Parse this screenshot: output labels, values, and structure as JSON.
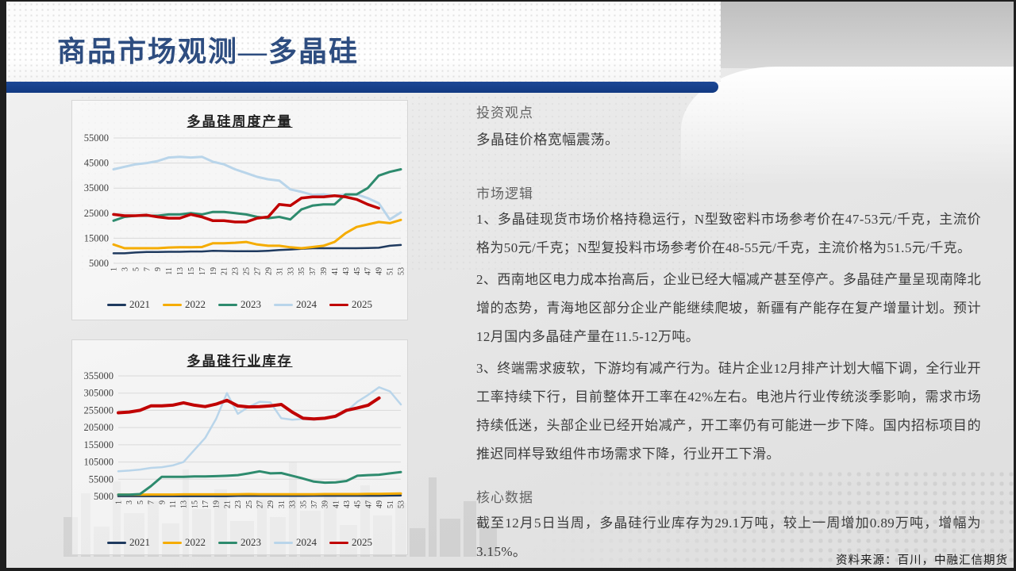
{
  "slide": {
    "title": "商品市场观测—多晶硅",
    "source": "资料来源：百川，中融汇信期货"
  },
  "sections": {
    "viewpoint": {
      "heading": "投资观点",
      "body": "多晶硅价格宽幅震荡。"
    },
    "logic": {
      "heading": "市场逻辑",
      "points": [
        "1、多晶硅现货市场价格持稳运行，N型致密料市场参考价在47-53元/千克，主流价格为50元/千克；N型复投料市场参考价在48-55元/千克，主流价格为51.5元/千克。",
        "2、西南地区电力成本抬高后，企业已经大幅减产甚至停产。多晶硅产量呈现南降北增的态势，青海地区部分企业产能继续爬坡，新疆有产能存在复产增量计划。预计12月国内多晶硅产量在11.5-12万吨。",
        "3、终端需求疲软，下游均有减产行为。硅片企业12月排产计划大幅下调，全行业开工率持续下行，目前整体开工率在42%左右。电池片行业传统淡季影响，需求市场持续低迷，头部企业已经开始减产，开工率仍有可能进一步下降。国内招标项目的推迟同样导致组件市场需求下降，行业开工下滑。"
      ]
    },
    "core": {
      "heading": "核心数据",
      "body": "截至12月5日当周，多晶硅行业库存为29.1万吨，较上一周增加0.89万吨，增幅为3.15%。"
    }
  },
  "colors": {
    "accent_blue": "#173f8c",
    "title_text": "#2e4d80",
    "y2021": "#1f3a5f",
    "y2022": "#f5ac00",
    "y2023": "#2e8b6e",
    "y2024": "#b9d5ea",
    "y2025": "#c00000"
  },
  "chart_data": [
    {
      "type": "line",
      "title": "多晶硅周度产量",
      "xlabel": "",
      "ylabel": "",
      "ylim": [
        5000,
        55000
      ],
      "yticks": [
        5000,
        15000,
        25000,
        35000,
        45000,
        55000
      ],
      "grid": true,
      "legend_position": "bottom",
      "x_labels": [
        "1",
        "3",
        "5",
        "7",
        "9",
        "11",
        "13",
        "15",
        "17",
        "19",
        "21",
        "23",
        "25",
        "27",
        "29",
        "31",
        "33",
        "35",
        "37",
        "39",
        "41",
        "43",
        "45",
        "47",
        "49",
        "51",
        "53"
      ],
      "series": [
        {
          "name": "2021",
          "color": "#1f3a5f",
          "width": 2.5,
          "z": 1,
          "values": [
            9000,
            9000,
            9300,
            9500,
            9500,
            9600,
            9600,
            9700,
            9700,
            10000,
            9900,
            9800,
            9800,
            9800,
            10000,
            10300,
            10500,
            10800,
            11000,
            11000,
            11000,
            11000,
            11000,
            11100,
            11200,
            12000,
            12300
          ]
        },
        {
          "name": "2022",
          "color": "#f5ac00",
          "width": 3,
          "z": 2,
          "values": [
            12500,
            11000,
            11000,
            11000,
            11000,
            11300,
            11400,
            11400,
            11500,
            13000,
            13000,
            13200,
            13500,
            12500,
            12000,
            12000,
            11400,
            11000,
            11500,
            12000,
            13500,
            17000,
            19500,
            20500,
            21500,
            21000,
            22300
          ]
        },
        {
          "name": "2023",
          "color": "#2e8b6e",
          "width": 3,
          "z": 4,
          "values": [
            22000,
            23500,
            24000,
            24000,
            24000,
            24500,
            24500,
            25000,
            24500,
            25500,
            25500,
            25000,
            24500,
            23500,
            23000,
            23500,
            22500,
            26500,
            28000,
            28500,
            28500,
            32500,
            32500,
            35000,
            40000,
            41500,
            42500
          ]
        },
        {
          "name": "2024",
          "color": "#b9d5ea",
          "width": 3,
          "z": 3,
          "values": [
            42500,
            43500,
            44500,
            45000,
            45800,
            47200,
            47500,
            47200,
            47500,
            45500,
            44500,
            42500,
            41000,
            39500,
            38500,
            38000,
            34500,
            33500,
            32300,
            32500,
            32000,
            32500,
            32500,
            31000,
            29000,
            22500,
            25300
          ]
        },
        {
          "name": "2025",
          "color": "#c00000",
          "width": 3.5,
          "z": 5,
          "values": [
            24500,
            24000,
            24000,
            24200,
            23500,
            23000,
            23000,
            24500,
            23500,
            22000,
            22000,
            21500,
            21500,
            23000,
            23500,
            28500,
            28000,
            31000,
            31500,
            31500,
            32000,
            31500,
            30500,
            28500,
            27000
          ]
        }
      ]
    },
    {
      "type": "line",
      "title": "多晶硅行业库存",
      "xlabel": "",
      "ylabel": "",
      "ylim": [
        5000,
        355000
      ],
      "yticks": [
        5000,
        55000,
        105000,
        155000,
        205000,
        255000,
        305000,
        355000
      ],
      "grid": true,
      "legend_position": "bottom",
      "x_labels": [
        "1",
        "3",
        "5",
        "7",
        "9",
        "11",
        "13",
        "15",
        "17",
        "19",
        "21",
        "23",
        "25",
        "27",
        "29",
        "31",
        "33",
        "35",
        "37",
        "39",
        "41",
        "43",
        "45",
        "47",
        "49",
        "51",
        "53"
      ],
      "series": [
        {
          "name": "2021",
          "color": "#1f3a5f",
          "width": 2.5,
          "z": 1,
          "values": [
            6000,
            6000,
            6000,
            6000,
            6000,
            6000,
            6000,
            6000,
            6000,
            6000,
            6000,
            6500,
            6500,
            6500,
            6500,
            6500,
            6500,
            6500,
            7000,
            7000,
            7000,
            7000,
            7000,
            7000,
            7000,
            7500,
            8000
          ]
        },
        {
          "name": "2022",
          "color": "#f5ac00",
          "width": 3,
          "z": 2,
          "values": [
            10000,
            10000,
            10000,
            10500,
            10500,
            10500,
            11000,
            11000,
            11000,
            11000,
            11000,
            11500,
            12000,
            11500,
            11500,
            11500,
            11500,
            11500,
            11500,
            12000,
            12000,
            12000,
            12000,
            12500,
            12500,
            13000,
            13500
          ]
        },
        {
          "name": "2023",
          "color": "#2e8b6e",
          "width": 3,
          "z": 3,
          "values": [
            10000,
            10000,
            12000,
            35000,
            62000,
            62000,
            62000,
            63000,
            63000,
            64000,
            65000,
            67000,
            72000,
            78000,
            72000,
            73000,
            65000,
            57000,
            48000,
            45000,
            46000,
            50000,
            65000,
            67000,
            68000,
            72000,
            76000
          ]
        },
        {
          "name": "2024",
          "color": "#b9d5ea",
          "width": 2.5,
          "z": 4,
          "values": [
            78000,
            80000,
            83000,
            88000,
            90000,
            95000,
            105000,
            140000,
            175000,
            230000,
            305000,
            245000,
            265000,
            280000,
            278000,
            232000,
            228000,
            230000,
            228000,
            232000,
            235000,
            252000,
            280000,
            300000,
            322000,
            310000,
            272000
          ]
        },
        {
          "name": "2025",
          "color": "#c00000",
          "width": 4,
          "z": 5,
          "values": [
            248000,
            250000,
            255000,
            268000,
            268000,
            270000,
            277000,
            270000,
            266000,
            273000,
            284000,
            268000,
            265000,
            266000,
            268000,
            272000,
            250000,
            232000,
            230000,
            232000,
            238000,
            255000,
            262000,
            270000,
            291000
          ]
        }
      ]
    }
  ]
}
